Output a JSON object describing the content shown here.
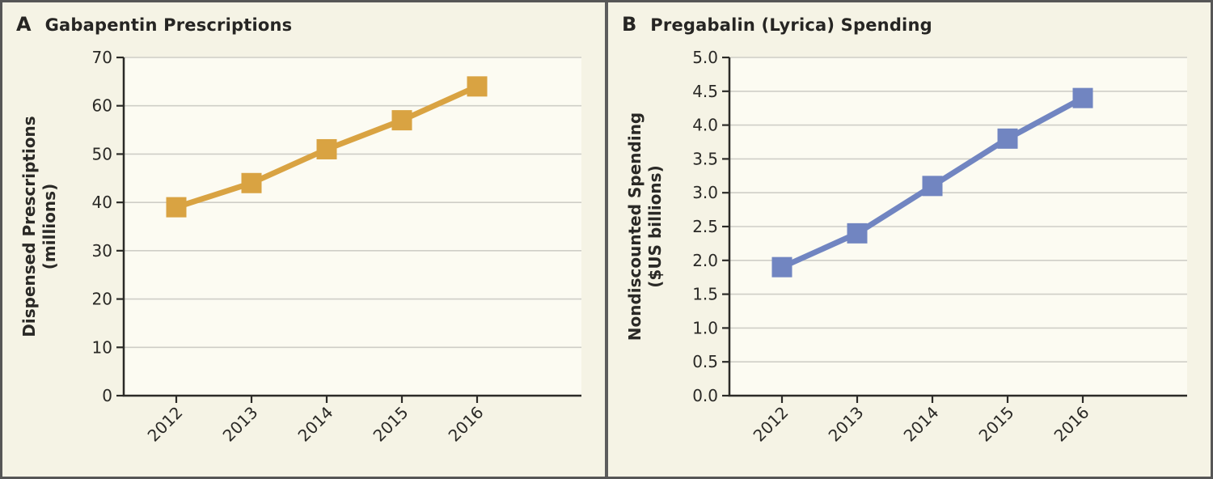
{
  "figure": {
    "background": "#f5f3e5",
    "plot_background": "#fcfbf2",
    "border_color": "#565656",
    "grid_color": "#cfcec7",
    "axis_color": "#2b2a27",
    "text_color": "#2a2926"
  },
  "panels": [
    {
      "letter": "A",
      "title": "Gabapentin Prescriptions"
    },
    {
      "letter": "B",
      "title": "Pregabalin (Lyrica) Spending"
    }
  ],
  "chart_data": [
    {
      "type": "line",
      "title": "Gabapentin Prescriptions",
      "categories": [
        "2012",
        "2013",
        "2014",
        "2015",
        "2016"
      ],
      "values": [
        39,
        44,
        51,
        57,
        64
      ],
      "series_color": "#d9a342",
      "marker": "square",
      "xlabel": "",
      "ylabel": "Dispensed Prescriptions (millions)",
      "ylabel_lines": [
        "Dispensed Prescriptions",
        "(millions)"
      ],
      "ylim": [
        0,
        70
      ],
      "ytick_step": 10,
      "ytick_labels": [
        "0",
        "10",
        "20",
        "30",
        "40",
        "50",
        "60",
        "70"
      ],
      "grid": true,
      "legend": "none"
    },
    {
      "type": "line",
      "title": "Pregabalin (Lyrica) Spending",
      "categories": [
        "2012",
        "2013",
        "2014",
        "2015",
        "2016"
      ],
      "values": [
        1.9,
        2.4,
        3.1,
        3.8,
        4.4
      ],
      "series_color": "#7185c1",
      "marker": "square",
      "xlabel": "",
      "ylabel": "Nondiscounted Spending ($US billions)",
      "ylabel_lines": [
        "Nondiscounted Spending",
        "($US billions)"
      ],
      "ylim": [
        0,
        5
      ],
      "ytick_step": 0.5,
      "ytick_labels": [
        "0.0",
        "0.5",
        "1.0",
        "1.5",
        "2.0",
        "2.5",
        "3.0",
        "3.5",
        "4.0",
        "4.5",
        "5.0"
      ],
      "grid": true,
      "legend": "none"
    }
  ]
}
